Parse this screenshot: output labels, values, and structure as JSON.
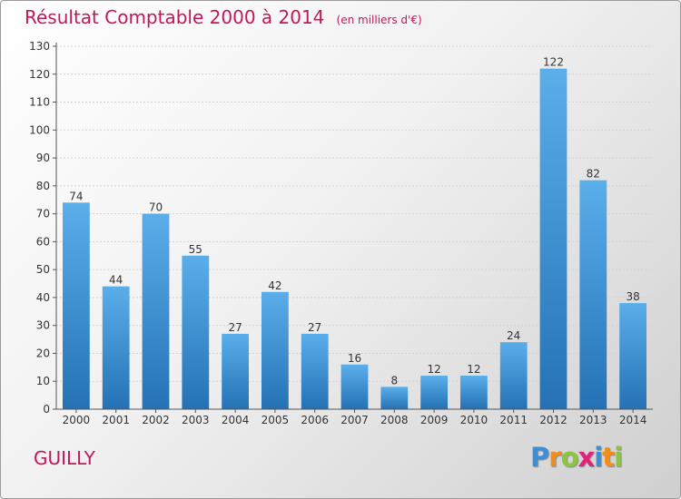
{
  "chart_data": {
    "type": "bar",
    "title": "Résultat Comptable 2000 à 2014",
    "unit_label": "(en milliers d'€)",
    "categories": [
      "2000",
      "2001",
      "2002",
      "2003",
      "2004",
      "2005",
      "2006",
      "2007",
      "2008",
      "2009",
      "2010",
      "2011",
      "2012",
      "2013",
      "2014"
    ],
    "values": [
      74,
      44,
      70,
      55,
      27,
      42,
      27,
      16,
      8,
      12,
      12,
      24,
      122,
      82,
      38
    ],
    "ylim": [
      0,
      130
    ],
    "yticks": [
      0,
      10,
      20,
      30,
      40,
      50,
      60,
      70,
      80,
      90,
      100,
      110,
      120,
      130
    ],
    "xlabel": "",
    "ylabel": "",
    "grid": true,
    "bar_color_light": "#5aaeea",
    "bar_color_dark": "#2472b5"
  },
  "footer": {
    "commune": "GUILLY",
    "logo_letters": [
      "P",
      "r",
      "o",
      "x",
      "i",
      "t",
      "i"
    ],
    "logo_colors": [
      "#3b8fd8",
      "#f28c1a",
      "#8cc63e",
      "#e0227b",
      "#3b8fd8",
      "#f28c1a",
      "#8cc63e"
    ],
    "title_color": "#c2185b"
  }
}
